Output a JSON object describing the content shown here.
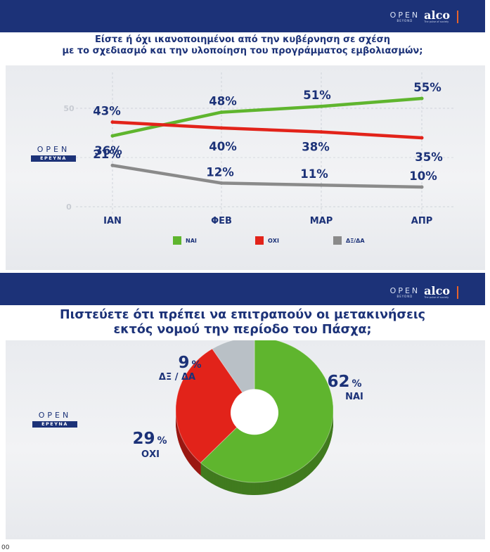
{
  "branding": {
    "open_text": "OPEN",
    "open_sub": "BEYOND",
    "alco_text": "alco",
    "alco_tagline": "The pulse of society"
  },
  "left_logo": {
    "word": "OPEN",
    "sub": "ΕΡΕΥΝΑ"
  },
  "colors": {
    "yes": "#5fb52e",
    "no": "#e2231a",
    "dk": "#8a8a8a",
    "navy": "#1c3278"
  },
  "chart_data": [
    {
      "type": "line",
      "title": "Είστε ή όχι ικανοποιημένοι από την κυβέρνηση σε σχέση με το σχεδιασμό και την υλοποίηση του προγράμματος εμβολιασμών;",
      "title_lines": [
        "Είστε ή όχι ικανοποιημένοι από την κυβέρνηση σε σχέση",
        "με το σχεδιασμό και την υλοποίηση του προγράμματος εμβολιασμών;"
      ],
      "categories": [
        "ΙΑΝ",
        "ΦΕΒ",
        "ΜΑΡ",
        "ΑΠΡ"
      ],
      "y_ticks": [
        "0",
        "50"
      ],
      "ylim": [
        0,
        65
      ],
      "grid": true,
      "legend_position": "bottom",
      "series": [
        {
          "name": "ΝΑΙ",
          "values": [
            36,
            48,
            51,
            55
          ],
          "labels": [
            "36%",
            "48%",
            "51%",
            "55%"
          ],
          "color": "#5fb52e"
        },
        {
          "name": "ΟΧΙ",
          "values": [
            43,
            40,
            38,
            35
          ],
          "labels": [
            "43%",
            "40%",
            "38%",
            "35%"
          ],
          "color": "#e2231a"
        },
        {
          "name": "ΔΞ/ΔΑ",
          "values": [
            21,
            12,
            11,
            10
          ],
          "labels": [
            "21%",
            "12%",
            "11%",
            "10%"
          ],
          "color": "#8a8a8a"
        }
      ]
    },
    {
      "type": "pie",
      "title": "Πιστεύετε ότι πρέπει να επιτραπούν οι μετακινήσεις εκτός νομού την περίοδο του Πάσχα;",
      "title_lines": [
        "Πιστεύετε ότι πρέπει να επιτραπούν οι μετακινήσεις",
        "εκτός νομού την περίοδο του Πάσχα;"
      ],
      "slices": [
        {
          "name": "ΝΑΙ",
          "value": 62,
          "value_label": "62",
          "color": "#5fb52e"
        },
        {
          "name": "ΟΧΙ",
          "value": 29,
          "value_label": "29",
          "color": "#e2231a"
        },
        {
          "name": "ΔΞ / ΔΑ",
          "value": 9,
          "value_label": "9",
          "color": "#b9c0c6"
        }
      ],
      "percent_sign": "%"
    }
  ],
  "bottom_text": "00"
}
